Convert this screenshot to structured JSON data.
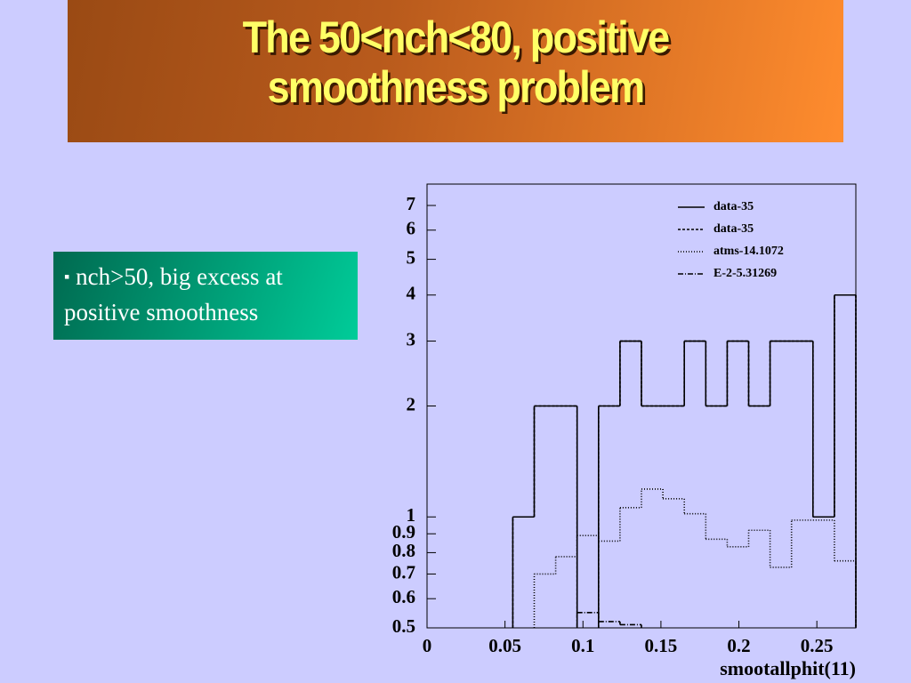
{
  "slide": {
    "title_lines": [
      "The 50<nch<80, positive",
      "smoothness problem"
    ],
    "bullet": "nch>50, big excess at positive smoothness"
  },
  "chart_data": {
    "type": "histogram",
    "x_label": "smootallphit(11)",
    "bins": [
      0,
      0.01375,
      0.0275,
      0.04125,
      0.055,
      0.06875,
      0.0825,
      0.09625,
      0.11,
      0.12375,
      0.1375,
      0.15125,
      0.165,
      0.17875,
      0.1925,
      0.20625,
      0.22,
      0.23375,
      0.2475,
      0.26125,
      0.275
    ],
    "xlim": [
      0,
      0.275
    ],
    "xticks": [
      0,
      0.05,
      0.1,
      0.15,
      0.2,
      0.25
    ],
    "ylim": [
      0.5,
      8
    ],
    "yticks": [
      0.5,
      0.6,
      0.7,
      0.8,
      0.9,
      1,
      2,
      3,
      4,
      5,
      6,
      7
    ],
    "log_y": true,
    "legend": "top-right",
    "series": [
      {
        "name": "data-35",
        "color": "#000000",
        "dash": "none",
        "values": [
          null,
          null,
          null,
          null,
          1,
          2,
          2,
          null,
          2,
          3,
          2,
          2,
          3,
          2,
          3,
          2,
          3,
          3,
          1,
          4
        ]
      },
      {
        "name": "data-35",
        "color": "#000000",
        "dash": "3,2",
        "values": [
          null,
          null,
          null,
          null,
          1,
          2,
          2,
          null,
          2,
          3,
          2,
          2,
          3,
          2,
          3,
          2,
          3,
          3,
          1,
          4
        ]
      },
      {
        "name": "atms-14.1072",
        "color": "#000000",
        "dash": "1,2",
        "values": [
          null,
          null,
          null,
          null,
          null,
          0.7,
          0.78,
          0.89,
          0.86,
          1.06,
          1.19,
          1.12,
          1.02,
          0.87,
          0.83,
          0.92,
          0.73,
          0.98,
          0.98,
          0.76
        ]
      },
      {
        "name": "E-2-5.31269",
        "color": "#000000",
        "dash": "6,2,1,2",
        "values": [
          null,
          null,
          null,
          null,
          null,
          null,
          null,
          0.55,
          0.52,
          0.51,
          null,
          null,
          null,
          null,
          null,
          null,
          null,
          null,
          null,
          null
        ]
      }
    ]
  }
}
